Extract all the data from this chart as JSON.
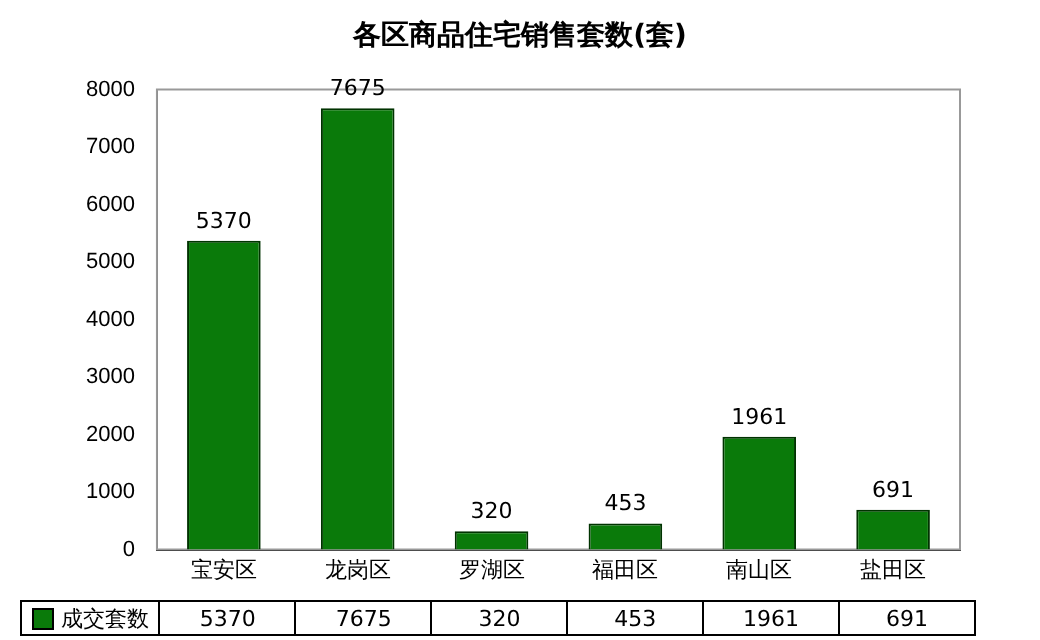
{
  "chart_data": {
    "type": "bar",
    "title": "各区商品住宅销售套数(套)",
    "categories": [
      "宝安区",
      "龙岗区",
      "罗湖区",
      "福田区",
      "南山区",
      "盐田区"
    ],
    "series": [
      {
        "name": "成交套数",
        "color": "#0a7a0a",
        "values": [
          5370,
          7675,
          320,
          453,
          1961,
          691
        ]
      }
    ],
    "ylim": [
      0,
      8000
    ],
    "yticks": [
      0,
      1000,
      2000,
      3000,
      4000,
      5000,
      6000,
      7000,
      8000
    ],
    "annotations": [
      "5370",
      "7675",
      "320",
      "453",
      "1961",
      "691"
    ],
    "grid": false,
    "legend": "bottom",
    "data_labels": true
  }
}
